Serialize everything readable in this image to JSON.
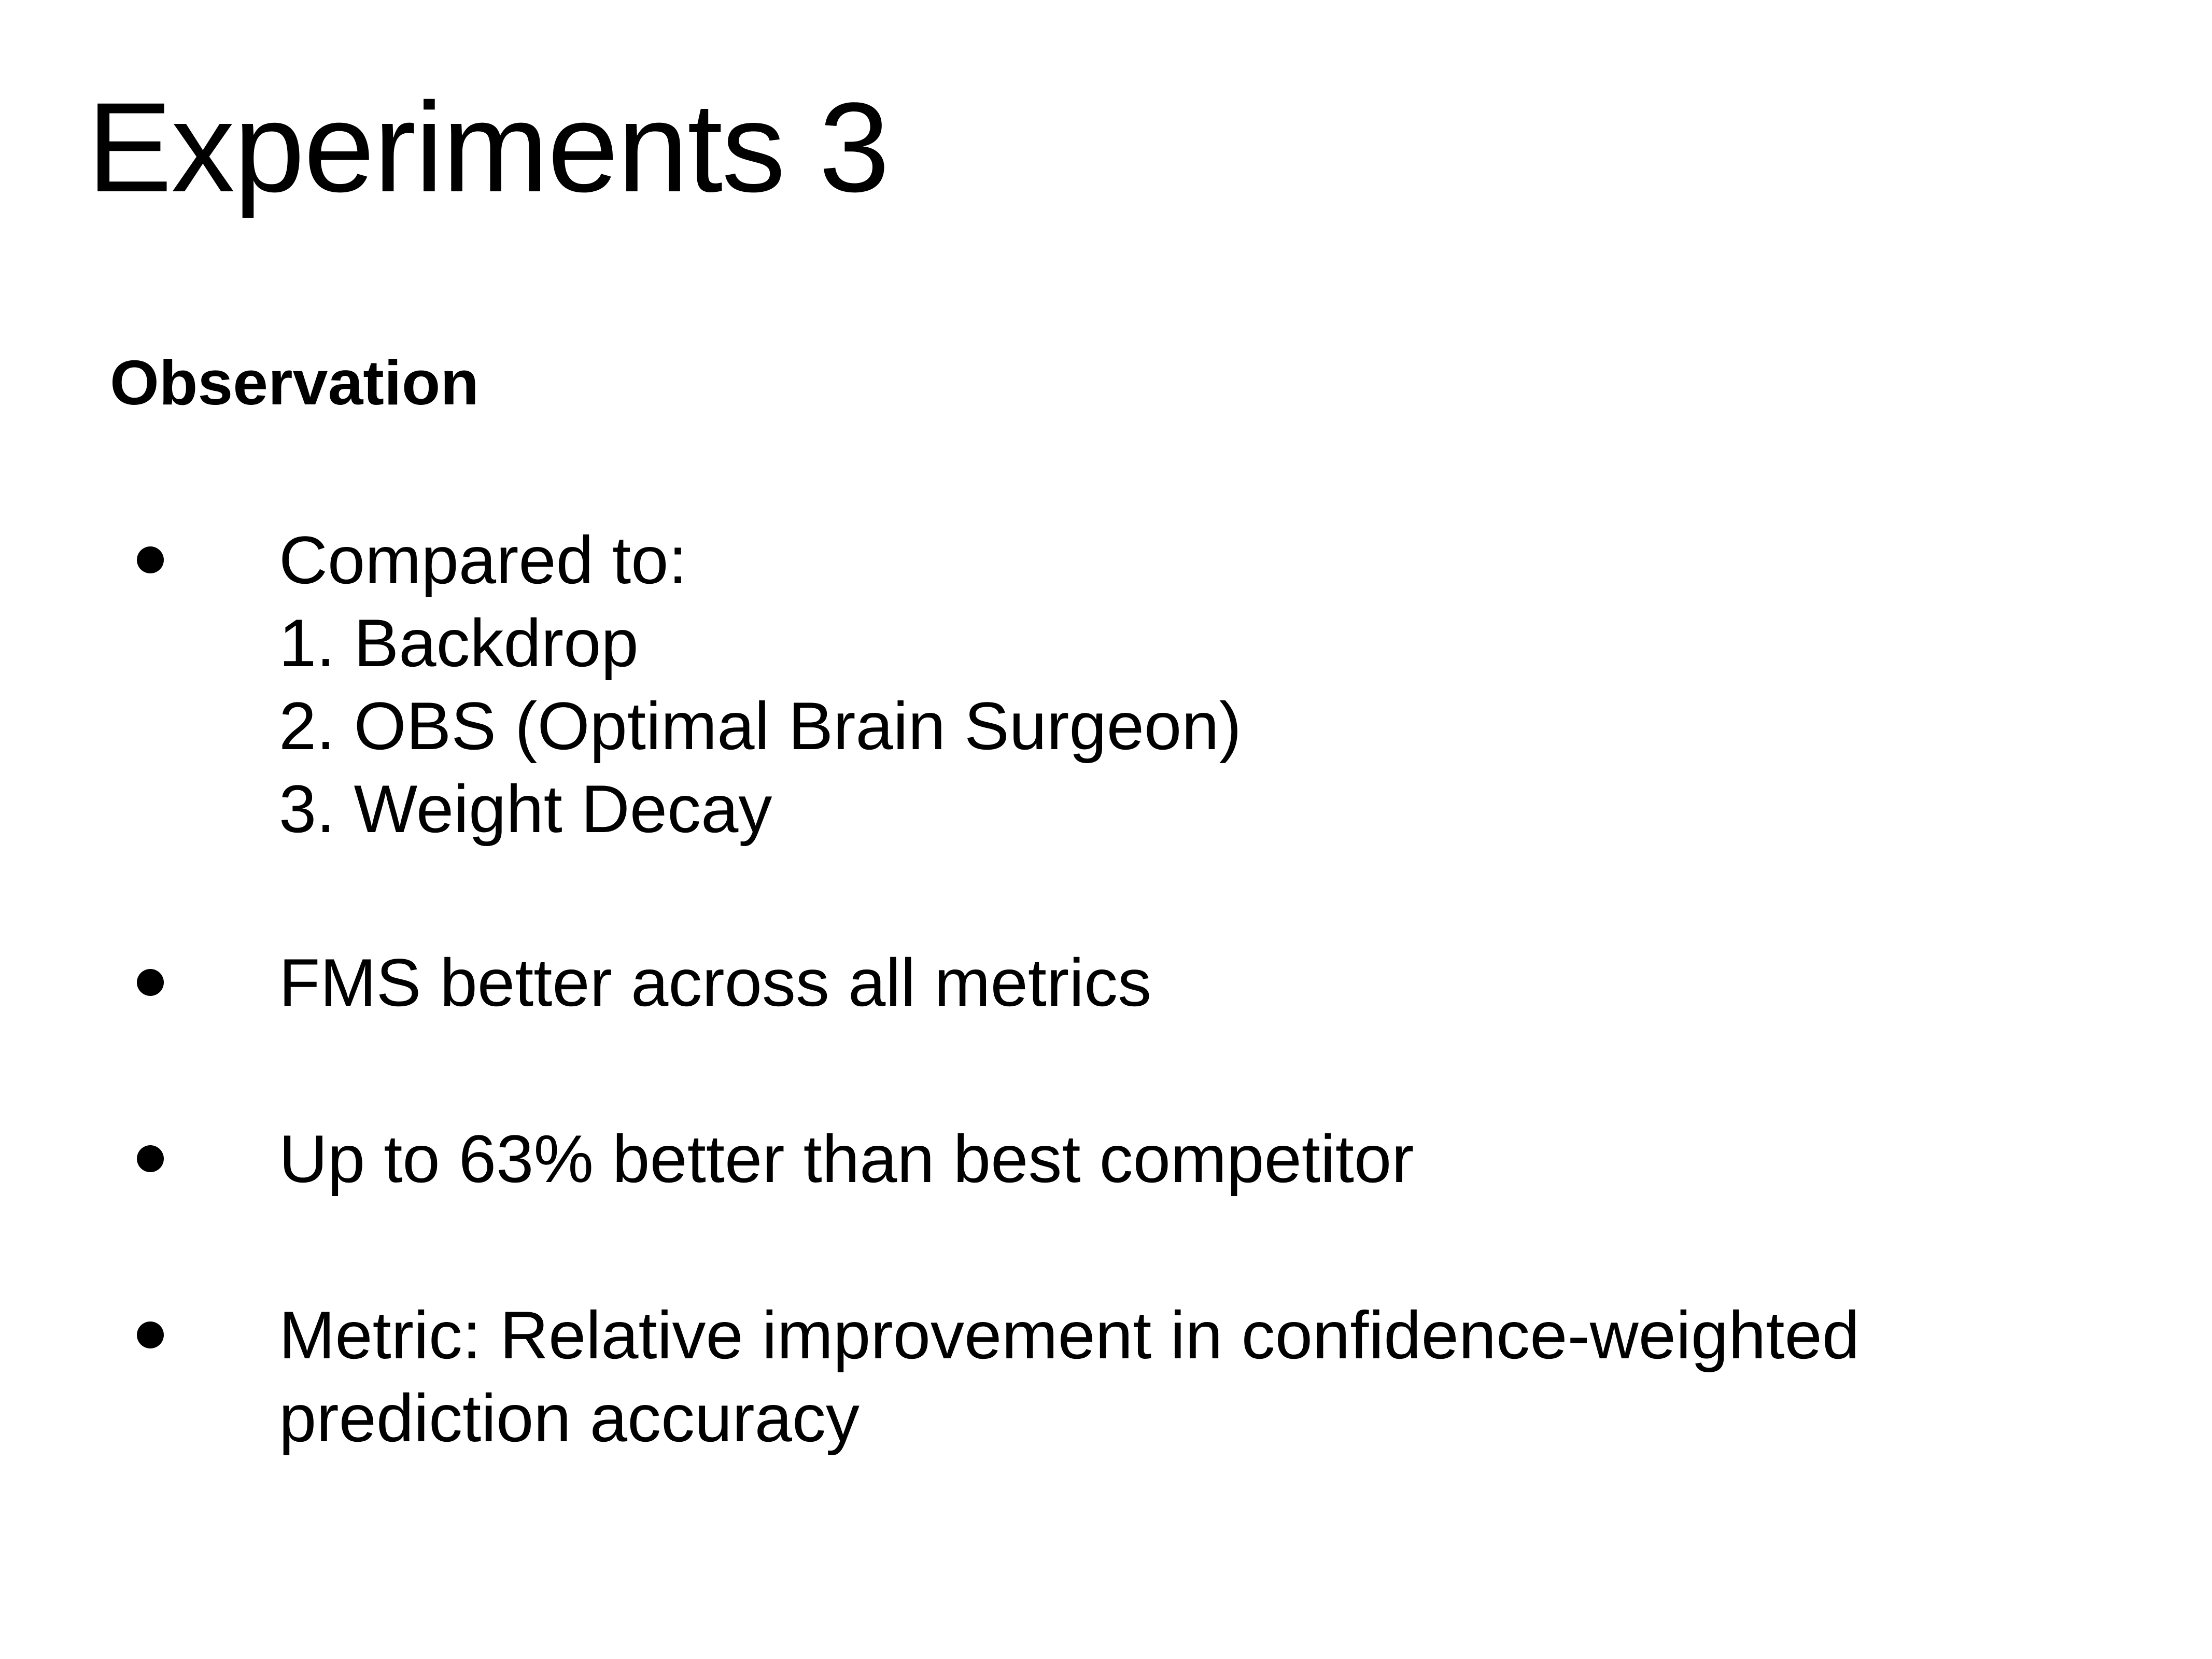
{
  "slide": {
    "title": "Experiments 3",
    "subheading": "Observation",
    "bullets": [
      {
        "text": "Compared to:",
        "sub_items": [
          "1. Backdrop",
          "2. OBS (Optimal Brain Surgeon)",
          "3. Weight Decay"
        ]
      },
      {
        "text": "FMS better across all metrics"
      },
      {
        "text": "Up to 63% better than best competitor"
      },
      {
        "text": "Metric: Relative improvement in confidence-weighted",
        "continuation": "prediction accuracy"
      }
    ]
  }
}
